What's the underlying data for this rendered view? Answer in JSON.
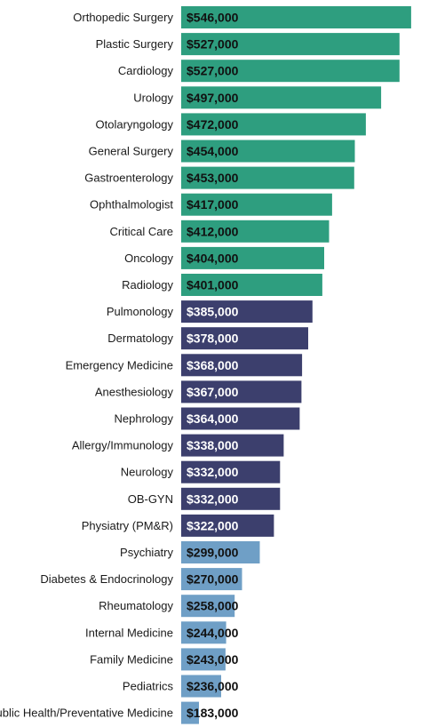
{
  "chart_data": {
    "type": "bar",
    "orientation": "horizontal",
    "categories": [
      "Orthopedic Surgery",
      "Plastic Surgery",
      "Cardiology",
      "Urology",
      "Otolaryngology",
      "General Surgery",
      "Gastroenterology",
      "Ophthalmologist",
      "Critical Care",
      "Oncology",
      "Radiology",
      "Pulmonology",
      "Dermatology",
      "Emergency Medicine",
      "Anesthesiology",
      "Nephrology",
      "Allergy/Immunology",
      "Neurology",
      "OB-GYN",
      "Physiatry (PM&R)",
      "Psychiatry",
      "Diabetes & Endocrinology",
      "Rheumatology",
      "Internal Medicine",
      "Family Medicine",
      "Pediatrics",
      "Public Health/Preventative Medicine"
    ],
    "values": [
      546000,
      527000,
      527000,
      497000,
      472000,
      454000,
      453000,
      417000,
      412000,
      404000,
      401000,
      385000,
      378000,
      368000,
      367000,
      364000,
      338000,
      332000,
      332000,
      322000,
      299000,
      270000,
      258000,
      244000,
      243000,
      236000,
      183000
    ],
    "value_labels": [
      "$546,000",
      "$527,000",
      "$527,000",
      "$497,000",
      "$472,000",
      "$454,000",
      "$453,000",
      "$417,000",
      "$412,000",
      "$404,000",
      "$401,000",
      "$385,000",
      "$378,000",
      "$368,000",
      "$367,000",
      "$364,000",
      "$338,000",
      "$332,000",
      "$332,000",
      "$322,000",
      "$299,000",
      "$270,000",
      "$258,000",
      "$244,000",
      "$243,000",
      "$236,000",
      "$183,000"
    ],
    "groups": [
      "top",
      "top",
      "top",
      "top",
      "top",
      "top",
      "top",
      "top",
      "top",
      "top",
      "top",
      "middle",
      "middle",
      "middle",
      "middle",
      "middle",
      "middle",
      "middle",
      "middle",
      "middle",
      "bottom",
      "bottom",
      "bottom",
      "bottom",
      "bottom",
      "bottom",
      "bottom"
    ],
    "colors": {
      "top": "#2e9e7f",
      "middle": "#3c3f6d",
      "bottom": "#6f9fc6"
    },
    "label_colors": {
      "top": "#111111",
      "middle": "#ffffff",
      "bottom": "#111111"
    },
    "title": "",
    "xlabel": "",
    "ylabel": "",
    "grid": false,
    "legend": "none"
  }
}
